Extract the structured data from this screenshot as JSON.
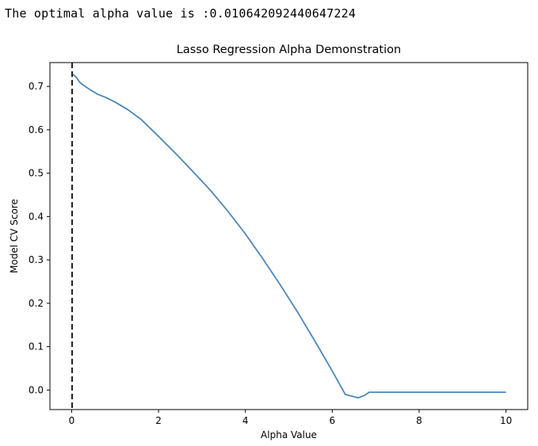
{
  "output": {
    "text": "The optimal alpha value is :0.010642092440647224"
  },
  "colors": {
    "line": "#4c86b9",
    "vline": "#222222",
    "axes": "#000000"
  },
  "chart_data": {
    "type": "line",
    "title": "Lasso Regression Alpha Demonstration",
    "xlabel": "Alpha Value",
    "ylabel": "Model CV Score",
    "xlim": [
      -0.5,
      10.5
    ],
    "ylim": [
      -0.045,
      0.755
    ],
    "xticks": [
      0,
      2,
      4,
      6,
      8,
      10
    ],
    "yticks": [
      0.0,
      0.1,
      0.2,
      0.3,
      0.4,
      0.5,
      0.6,
      0.7
    ],
    "grid": false,
    "series": [
      {
        "x": [
          0.0,
          0.1,
          0.2,
          0.4,
          0.6,
          0.8,
          1.0,
          1.3,
          1.6,
          2.0,
          2.4,
          2.8,
          3.2,
          3.6,
          4.0,
          4.4,
          4.8,
          5.2,
          5.6,
          6.0,
          6.3,
          6.6,
          6.75,
          6.85,
          7.0,
          8.0,
          9.0,
          10.0
        ],
        "y": [
          0.73,
          0.722,
          0.708,
          0.694,
          0.682,
          0.674,
          0.664,
          0.646,
          0.624,
          0.585,
          0.545,
          0.503,
          0.46,
          0.412,
          0.36,
          0.303,
          0.243,
          0.18,
          0.113,
          0.044,
          -0.01,
          -0.018,
          -0.012,
          -0.005,
          -0.005,
          -0.005,
          -0.005,
          -0.005
        ]
      }
    ],
    "vline": {
      "x": 0.010642092440647224,
      "style": "dashed"
    }
  }
}
